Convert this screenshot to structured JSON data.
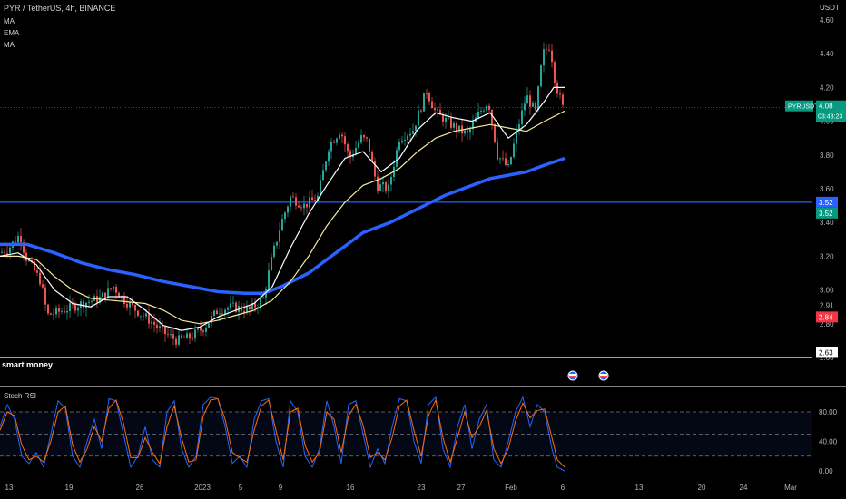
{
  "header": {
    "title": "PYR / TetherUS, 4h, BINANCE",
    "indicators": [
      "MA",
      "EMA",
      "MA"
    ],
    "currency": "USDT"
  },
  "price_axis": {
    "ticks": [
      "4.60",
      "4.40",
      "4.20",
      "4.00",
      "3.80",
      "3.60",
      "3.40",
      "3.20",
      "3.00",
      "2.91",
      "2.80",
      "2.63",
      "2.60"
    ],
    "labels": [
      {
        "text": "PYRUSDT",
        "value": "4.08",
        "sub": "03:43:23",
        "color": "#089981"
      },
      {
        "text": "",
        "value": "3.52",
        "color": "#2962ff"
      },
      {
        "text": "",
        "value": "3.52",
        "color": "#089981"
      },
      {
        "text": "",
        "value": "2.84",
        "color": "#f23645"
      },
      {
        "text": "",
        "value": "2.63",
        "color": "#ffffff"
      }
    ]
  },
  "overlay": {
    "label": "smart money"
  },
  "stoch": {
    "title": "Stoch RSI",
    "ticks": [
      "80.00",
      "40.00",
      "0.00"
    ]
  },
  "x_axis": {
    "ticks": [
      "13",
      "19",
      "26",
      "2023",
      "5",
      "9",
      "16",
      "23",
      "27",
      "Feb",
      "6",
      "13",
      "20",
      "24",
      "Mar"
    ]
  },
  "colors": {
    "up": "#26a69a",
    "down": "#ef5350",
    "ma_blue": "#2962ff",
    "ema_white": "#ffffff",
    "ma_yellow": "#f5e99b",
    "stoch_k": "#2962ff",
    "stoch_d": "#ff6d00"
  },
  "chart_data": {
    "type": "candlestick",
    "symbol": "PYR / TetherUS",
    "timeframe": "4h",
    "exchange": "BINANCE",
    "ylim": [
      2.58,
      4.66
    ],
    "horizontal_levels": [
      3.52,
      2.63
    ],
    "last_price": 4.08,
    "x_labels": [
      "13",
      "19",
      "26",
      "2023",
      "5",
      "9",
      "16",
      "23",
      "27",
      "Feb",
      "6",
      "13",
      "20",
      "24",
      "Mar"
    ],
    "close_path": [
      [
        0,
        3.22
      ],
      [
        10,
        3.25
      ],
      [
        22,
        3.33
      ],
      [
        28,
        3.2
      ],
      [
        45,
        3.05
      ],
      [
        52,
        2.85
      ],
      [
        70,
        2.88
      ],
      [
        90,
        2.92
      ],
      [
        110,
        2.95
      ],
      [
        125,
        3.02
      ],
      [
        135,
        2.95
      ],
      [
        150,
        2.88
      ],
      [
        165,
        2.82
      ],
      [
        180,
        2.75
      ],
      [
        195,
        2.7
      ],
      [
        210,
        2.72
      ],
      [
        225,
        2.78
      ],
      [
        240,
        2.88
      ],
      [
        255,
        2.9
      ],
      [
        275,
        2.88
      ],
      [
        290,
        2.95
      ],
      [
        300,
        3.2
      ],
      [
        310,
        3.4
      ],
      [
        320,
        3.55
      ],
      [
        335,
        3.5
      ],
      [
        350,
        3.55
      ],
      [
        362,
        3.85
      ],
      [
        375,
        3.95
      ],
      [
        385,
        3.78
      ],
      [
        398,
        3.9
      ],
      [
        405,
        3.88
      ],
      [
        415,
        3.62
      ],
      [
        428,
        3.6
      ],
      [
        440,
        3.9
      ],
      [
        455,
        3.95
      ],
      [
        470,
        4.18
      ],
      [
        480,
        4.05
      ],
      [
        492,
        4.0
      ],
      [
        505,
        3.95
      ],
      [
        515,
        3.92
      ],
      [
        528,
        4.05
      ],
      [
        538,
        4.12
      ],
      [
        548,
        3.8
      ],
      [
        560,
        3.72
      ],
      [
        570,
        3.95
      ],
      [
        580,
        4.15
      ],
      [
        590,
        4.05
      ],
      [
        598,
        4.4
      ],
      [
        606,
        4.45
      ],
      [
        612,
        4.22
      ],
      [
        620,
        4.08
      ]
    ],
    "ema_path": [
      [
        0,
        3.2
      ],
      [
        20,
        3.22
      ],
      [
        40,
        3.15
      ],
      [
        60,
        3.0
      ],
      [
        80,
        2.92
      ],
      [
        100,
        2.9
      ],
      [
        120,
        2.96
      ],
      [
        140,
        2.96
      ],
      [
        160,
        2.88
      ],
      [
        180,
        2.79
      ],
      [
        200,
        2.76
      ],
      [
        220,
        2.78
      ],
      [
        240,
        2.84
      ],
      [
        260,
        2.88
      ],
      [
        280,
        2.92
      ],
      [
        300,
        3.02
      ],
      [
        320,
        3.25
      ],
      [
        340,
        3.45
      ],
      [
        360,
        3.62
      ],
      [
        380,
        3.78
      ],
      [
        400,
        3.82
      ],
      [
        420,
        3.7
      ],
      [
        440,
        3.78
      ],
      [
        460,
        3.95
      ],
      [
        480,
        4.05
      ],
      [
        500,
        4.02
      ],
      [
        520,
        4.0
      ],
      [
        540,
        4.05
      ],
      [
        560,
        3.9
      ],
      [
        580,
        3.98
      ],
      [
        600,
        4.12
      ],
      [
        610,
        4.2
      ],
      [
        622,
        4.2
      ]
    ],
    "ma_yellow_path": [
      [
        0,
        3.2
      ],
      [
        20,
        3.2
      ],
      [
        40,
        3.18
      ],
      [
        60,
        3.08
      ],
      [
        80,
        3.0
      ],
      [
        100,
        2.95
      ],
      [
        120,
        2.94
      ],
      [
        140,
        2.93
      ],
      [
        160,
        2.92
      ],
      [
        180,
        2.88
      ],
      [
        200,
        2.82
      ],
      [
        220,
        2.8
      ],
      [
        240,
        2.82
      ],
      [
        260,
        2.85
      ],
      [
        280,
        2.88
      ],
      [
        300,
        2.94
      ],
      [
        320,
        3.05
      ],
      [
        340,
        3.2
      ],
      [
        360,
        3.38
      ],
      [
        380,
        3.52
      ],
      [
        400,
        3.62
      ],
      [
        420,
        3.66
      ],
      [
        440,
        3.72
      ],
      [
        460,
        3.82
      ],
      [
        480,
        3.9
      ],
      [
        500,
        3.94
      ],
      [
        520,
        3.96
      ],
      [
        540,
        3.98
      ],
      [
        560,
        3.96
      ],
      [
        580,
        3.94
      ],
      [
        600,
        4.0
      ],
      [
        622,
        4.06
      ]
    ],
    "ma_blue_path": [
      [
        0,
        3.27
      ],
      [
        30,
        3.27
      ],
      [
        60,
        3.22
      ],
      [
        90,
        3.16
      ],
      [
        120,
        3.12
      ],
      [
        150,
        3.09
      ],
      [
        180,
        3.05
      ],
      [
        210,
        3.02
      ],
      [
        240,
        2.99
      ],
      [
        270,
        2.98
      ],
      [
        290,
        2.98
      ],
      [
        310,
        3.02
      ],
      [
        340,
        3.1
      ],
      [
        370,
        3.22
      ],
      [
        400,
        3.34
      ],
      [
        430,
        3.4
      ],
      [
        460,
        3.48
      ],
      [
        490,
        3.56
      ],
      [
        520,
        3.62
      ],
      [
        540,
        3.66
      ],
      [
        560,
        3.68
      ],
      [
        580,
        3.7
      ],
      [
        600,
        3.74
      ],
      [
        622,
        3.78
      ]
    ],
    "stoch_ticks": [
      "80.00",
      "40.00",
      "0.00"
    ],
    "stoch_bands": [
      80,
      50,
      20
    ],
    "stoch_k": [
      [
        0,
        60
      ],
      [
        8,
        90
      ],
      [
        16,
        70
      ],
      [
        24,
        20
      ],
      [
        32,
        10
      ],
      [
        40,
        25
      ],
      [
        48,
        5
      ],
      [
        56,
        50
      ],
      [
        64,
        95
      ],
      [
        72,
        85
      ],
      [
        80,
        20
      ],
      [
        88,
        5
      ],
      [
        96,
        40
      ],
      [
        104,
        70
      ],
      [
        112,
        30
      ],
      [
        120,
        98
      ],
      [
        128,
        95
      ],
      [
        136,
        50
      ],
      [
        144,
        5
      ],
      [
        152,
        20
      ],
      [
        160,
        60
      ],
      [
        168,
        15
      ],
      [
        176,
        5
      ],
      [
        184,
        80
      ],
      [
        192,
        95
      ],
      [
        200,
        30
      ],
      [
        208,
        5
      ],
      [
        216,
        20
      ],
      [
        224,
        90
      ],
      [
        232,
        100
      ],
      [
        240,
        98
      ],
      [
        248,
        60
      ],
      [
        256,
        10
      ],
      [
        264,
        20
      ],
      [
        272,
        5
      ],
      [
        280,
        70
      ],
      [
        288,
        95
      ],
      [
        296,
        98
      ],
      [
        304,
        40
      ],
      [
        312,
        5
      ],
      [
        320,
        95
      ],
      [
        328,
        80
      ],
      [
        336,
        20
      ],
      [
        344,
        5
      ],
      [
        352,
        30
      ],
      [
        360,
        95
      ],
      [
        368,
        60
      ],
      [
        376,
        10
      ],
      [
        384,
        90
      ],
      [
        392,
        95
      ],
      [
        400,
        50
      ],
      [
        408,
        5
      ],
      [
        416,
        30
      ],
      [
        424,
        10
      ],
      [
        432,
        60
      ],
      [
        440,
        98
      ],
      [
        448,
        95
      ],
      [
        456,
        40
      ],
      [
        464,
        10
      ],
      [
        472,
        90
      ],
      [
        480,
        100
      ],
      [
        488,
        30
      ],
      [
        496,
        5
      ],
      [
        504,
        60
      ],
      [
        512,
        90
      ],
      [
        520,
        30
      ],
      [
        528,
        70
      ],
      [
        536,
        90
      ],
      [
        544,
        15
      ],
      [
        552,
        5
      ],
      [
        560,
        40
      ],
      [
        568,
        80
      ],
      [
        576,
        100
      ],
      [
        584,
        60
      ],
      [
        592,
        90
      ],
      [
        600,
        80
      ],
      [
        608,
        30
      ],
      [
        614,
        5
      ],
      [
        622,
        0
      ]
    ],
    "stoch_d": [
      [
        0,
        55
      ],
      [
        8,
        80
      ],
      [
        16,
        75
      ],
      [
        24,
        35
      ],
      [
        32,
        15
      ],
      [
        40,
        20
      ],
      [
        48,
        12
      ],
      [
        56,
        40
      ],
      [
        64,
        80
      ],
      [
        72,
        88
      ],
      [
        80,
        35
      ],
      [
        88,
        12
      ],
      [
        96,
        30
      ],
      [
        104,
        60
      ],
      [
        112,
        40
      ],
      [
        120,
        85
      ],
      [
        128,
        96
      ],
      [
        136,
        65
      ],
      [
        144,
        18
      ],
      [
        152,
        18
      ],
      [
        160,
        45
      ],
      [
        168,
        25
      ],
      [
        176,
        10
      ],
      [
        184,
        60
      ],
      [
        192,
        88
      ],
      [
        200,
        45
      ],
      [
        208,
        12
      ],
      [
        216,
        15
      ],
      [
        224,
        75
      ],
      [
        232,
        96
      ],
      [
        240,
        98
      ],
      [
        248,
        70
      ],
      [
        256,
        25
      ],
      [
        264,
        18
      ],
      [
        272,
        12
      ],
      [
        280,
        55
      ],
      [
        288,
        88
      ],
      [
        296,
        96
      ],
      [
        304,
        55
      ],
      [
        312,
        15
      ],
      [
        320,
        80
      ],
      [
        328,
        85
      ],
      [
        336,
        35
      ],
      [
        344,
        12
      ],
      [
        352,
        25
      ],
      [
        360,
        80
      ],
      [
        368,
        70
      ],
      [
        376,
        25
      ],
      [
        384,
        75
      ],
      [
        392,
        90
      ],
      [
        400,
        62
      ],
      [
        408,
        18
      ],
      [
        416,
        25
      ],
      [
        424,
        15
      ],
      [
        432,
        45
      ],
      [
        440,
        88
      ],
      [
        448,
        96
      ],
      [
        456,
        55
      ],
      [
        464,
        20
      ],
      [
        472,
        75
      ],
      [
        480,
        96
      ],
      [
        488,
        45
      ],
      [
        496,
        12
      ],
      [
        504,
        45
      ],
      [
        512,
        80
      ],
      [
        520,
        45
      ],
      [
        528,
        60
      ],
      [
        536,
        82
      ],
      [
        544,
        30
      ],
      [
        552,
        10
      ],
      [
        560,
        30
      ],
      [
        568,
        68
      ],
      [
        576,
        92
      ],
      [
        584,
        72
      ],
      [
        592,
        82
      ],
      [
        600,
        84
      ],
      [
        608,
        45
      ],
      [
        614,
        15
      ],
      [
        622,
        5
      ]
    ]
  }
}
